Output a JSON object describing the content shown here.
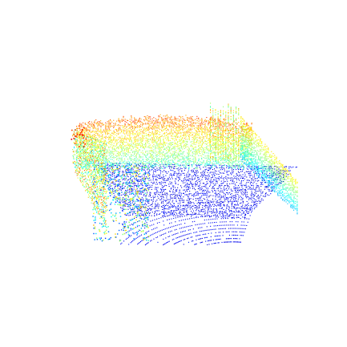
{
  "scene": {
    "kind": "lidar-point-cloud",
    "background": "#ffffff",
    "colormap": "jet",
    "colormap_stops": [
      "#00007f",
      "#0000ff",
      "#00ffff",
      "#7fff7f",
      "#ffff00",
      "#ff0000"
    ]
  }
}
